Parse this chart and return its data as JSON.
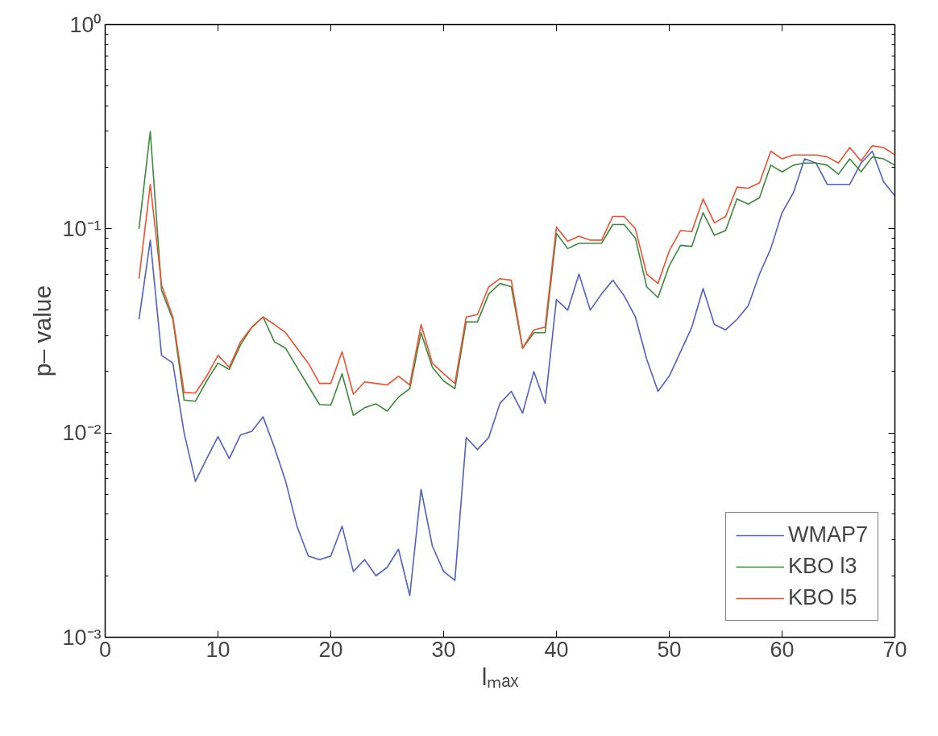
{
  "chart_data": {
    "type": "line",
    "xlabel": "lₘₐₓ",
    "ylabel": "p– value",
    "x": [
      3,
      4,
      5,
      6,
      7,
      8,
      9,
      10,
      11,
      12,
      13,
      14,
      15,
      16,
      17,
      18,
      19,
      20,
      21,
      22,
      23,
      24,
      25,
      26,
      27,
      28,
      29,
      30,
      31,
      32,
      33,
      34,
      35,
      36,
      37,
      38,
      39,
      40,
      41,
      42,
      43,
      44,
      45,
      46,
      47,
      48,
      49,
      50,
      51,
      52,
      53,
      54,
      55,
      56,
      57,
      58,
      59,
      60,
      61,
      62,
      63,
      64,
      65,
      66,
      67,
      68,
      69,
      70
    ],
    "series": [
      {
        "name": "WMAP7",
        "color": "#5060c0",
        "values": [
          0.036,
          0.088,
          0.024,
          0.022,
          0.01,
          0.0058,
          0.0075,
          0.0096,
          0.0075,
          0.0098,
          0.0102,
          0.012,
          0.0085,
          0.0058,
          0.0035,
          0.0025,
          0.0024,
          0.0025,
          0.0035,
          0.0021,
          0.0024,
          0.002,
          0.0022,
          0.0027,
          0.0016,
          0.0053,
          0.0028,
          0.0021,
          0.0019,
          0.0095,
          0.0083,
          0.0095,
          0.014,
          0.016,
          0.0125,
          0.02,
          0.014,
          0.045,
          0.04,
          0.06,
          0.04,
          0.048,
          0.056,
          0.047,
          0.037,
          0.023,
          0.016,
          0.019,
          0.025,
          0.033,
          0.051,
          0.034,
          0.032,
          0.036,
          0.042,
          0.06,
          0.08,
          0.12,
          0.15,
          0.22,
          0.21,
          0.165,
          0.165,
          0.165,
          0.21,
          0.24,
          0.17,
          0.145
        ]
      },
      {
        "name": "KBO l3",
        "color": "#3a8a3a",
        "values": [
          0.1,
          0.3,
          0.05,
          0.036,
          0.0145,
          0.0143,
          0.018,
          0.022,
          0.0205,
          0.027,
          0.033,
          0.037,
          0.028,
          0.026,
          0.021,
          0.017,
          0.0138,
          0.0137,
          0.0195,
          0.0122,
          0.0133,
          0.0139,
          0.0128,
          0.015,
          0.0165,
          0.031,
          0.021,
          0.018,
          0.0165,
          0.035,
          0.035,
          0.048,
          0.054,
          0.052,
          0.026,
          0.031,
          0.031,
          0.095,
          0.08,
          0.085,
          0.085,
          0.085,
          0.105,
          0.105,
          0.09,
          0.052,
          0.046,
          0.066,
          0.083,
          0.082,
          0.12,
          0.093,
          0.098,
          0.14,
          0.132,
          0.142,
          0.205,
          0.19,
          0.205,
          0.21,
          0.21,
          0.205,
          0.185,
          0.22,
          0.19,
          0.225,
          0.22,
          0.205
        ]
      },
      {
        "name": "KBO l5",
        "color": "#f05030",
        "values": [
          0.057,
          0.165,
          0.053,
          0.037,
          0.0158,
          0.0157,
          0.019,
          0.024,
          0.021,
          0.028,
          0.033,
          0.037,
          0.034,
          0.031,
          0.026,
          0.022,
          0.0175,
          0.0175,
          0.025,
          0.0155,
          0.0178,
          0.0175,
          0.0172,
          0.019,
          0.0172,
          0.034,
          0.022,
          0.0195,
          0.0175,
          0.037,
          0.038,
          0.052,
          0.057,
          0.056,
          0.026,
          0.032,
          0.033,
          0.102,
          0.087,
          0.092,
          0.088,
          0.088,
          0.115,
          0.115,
          0.1,
          0.06,
          0.054,
          0.078,
          0.098,
          0.097,
          0.14,
          0.107,
          0.115,
          0.16,
          0.158,
          0.168,
          0.24,
          0.22,
          0.23,
          0.23,
          0.23,
          0.225,
          0.21,
          0.25,
          0.215,
          0.255,
          0.25,
          0.23
        ]
      }
    ],
    "xlim": [
      0,
      70
    ],
    "xticks": [
      0,
      10,
      20,
      30,
      40,
      50,
      60,
      70
    ],
    "ylim": [
      0.001,
      1
    ],
    "yticks": [
      {
        "value": 0.001,
        "label": "10⁻³"
      },
      {
        "value": 0.01,
        "label": "10⁻²"
      },
      {
        "value": 0.1,
        "label": "10⁻¹"
      },
      {
        "value": 1,
        "label": "10⁰"
      }
    ],
    "log": "y",
    "grid": false,
    "legend": "bottom right",
    "line_style": "solid"
  }
}
